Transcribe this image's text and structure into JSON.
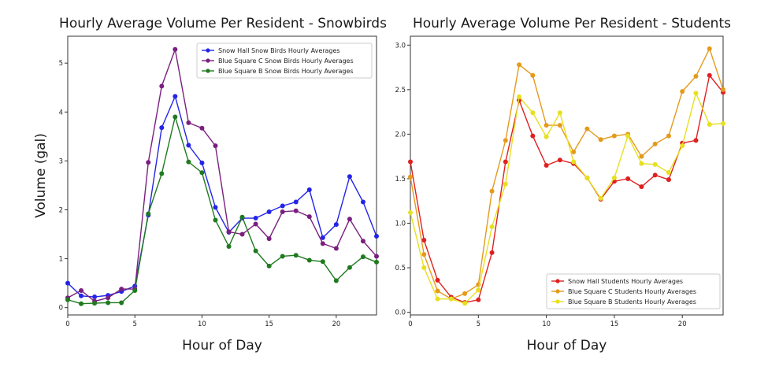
{
  "chart_data": [
    {
      "type": "line",
      "title": "Hourly Average Volume Per Resident - Snowbirds",
      "xlabel": "Hour of Day",
      "ylabel": "Volume (gal)",
      "xlim": [
        0,
        23
      ],
      "ylim": [
        -0.15,
        5.55
      ],
      "xticks": [
        0,
        5,
        10,
        15,
        20
      ],
      "yticks": [
        0,
        1,
        2,
        3,
        4,
        5
      ],
      "ytick_format": "int",
      "legend_position": "top-right",
      "x": [
        0,
        1,
        2,
        3,
        4,
        5,
        6,
        7,
        8,
        9,
        10,
        11,
        12,
        13,
        14,
        15,
        16,
        17,
        18,
        19,
        20,
        21,
        22,
        23
      ],
      "series": [
        {
          "name": "Snow Hall Snow Birds Hourly Averages",
          "color": "#2424e8",
          "values": [
            0.5,
            0.24,
            0.22,
            0.25,
            0.33,
            0.44,
            1.89,
            3.68,
            4.32,
            3.32,
            2.96,
            2.05,
            1.54,
            1.83,
            1.83,
            1.96,
            2.08,
            2.16,
            2.41,
            1.43,
            1.7,
            2.68,
            2.16,
            1.46
          ]
        },
        {
          "name": "Blue Square C Snow Birds Hourly Averages",
          "color": "#7a1f7f",
          "values": [
            0.2,
            0.35,
            0.13,
            0.2,
            0.38,
            0.38,
            2.97,
            4.53,
            5.28,
            3.78,
            3.67,
            3.31,
            1.55,
            1.5,
            1.71,
            1.41,
            1.96,
            1.98,
            1.86,
            1.31,
            1.21,
            1.81,
            1.36,
            1.05
          ]
        },
        {
          "name": "Blue Square B Snow Birds Hourly Averages",
          "color": "#1e7a1e",
          "values": [
            0.16,
            0.08,
            0.09,
            0.1,
            0.1,
            0.35,
            1.92,
            2.74,
            3.9,
            2.98,
            2.76,
            1.79,
            1.25,
            1.85,
            1.16,
            0.85,
            1.05,
            1.07,
            0.97,
            0.94,
            0.55,
            0.82,
            1.04,
            0.93
          ]
        }
      ]
    },
    {
      "type": "line",
      "title": "Hourly Average Volume Per Resident - Students",
      "xlabel": "Hour of Day",
      "ylabel": "",
      "xlim": [
        0,
        23
      ],
      "ylim": [
        -0.03,
        3.1
      ],
      "xticks": [
        0,
        5,
        10,
        15,
        20
      ],
      "yticks": [
        0.0,
        0.5,
        1.0,
        1.5,
        2.0,
        2.5,
        3.0
      ],
      "ytick_format": "one-decimal",
      "legend_position": "bottom-right",
      "x": [
        0,
        1,
        2,
        3,
        4,
        5,
        6,
        7,
        8,
        9,
        10,
        11,
        12,
        13,
        14,
        15,
        16,
        17,
        18,
        19,
        20,
        21,
        22,
        23
      ],
      "series": [
        {
          "name": "Snow Hall Students Hourly Averages",
          "color": "#e02020",
          "values": [
            1.69,
            0.81,
            0.36,
            0.17,
            0.11,
            0.14,
            0.67,
            1.69,
            2.38,
            1.98,
            1.65,
            1.71,
            1.67,
            1.51,
            1.27,
            1.47,
            1.5,
            1.41,
            1.54,
            1.49,
            1.9,
            1.93,
            2.66,
            2.47
          ]
        },
        {
          "name": "Blue Square C Students Hourly Averages",
          "color": "#e59a1c",
          "values": [
            1.52,
            0.65,
            0.24,
            0.15,
            0.21,
            0.31,
            1.36,
            1.93,
            2.78,
            2.66,
            2.1,
            2.1,
            1.8,
            2.06,
            1.94,
            1.98,
            2.0,
            1.75,
            1.89,
            1.98,
            2.48,
            2.65,
            2.96,
            2.5
          ]
        },
        {
          "name": "Blue Square B Students Hourly Averages",
          "color": "#e6e020",
          "values": [
            1.12,
            0.5,
            0.15,
            0.15,
            0.1,
            0.25,
            0.96,
            1.44,
            2.42,
            2.24,
            1.97,
            2.24,
            1.69,
            1.51,
            1.28,
            1.51,
            1.98,
            1.67,
            1.66,
            1.57,
            1.87,
            2.46,
            2.11,
            2.12
          ]
        }
      ]
    }
  ]
}
